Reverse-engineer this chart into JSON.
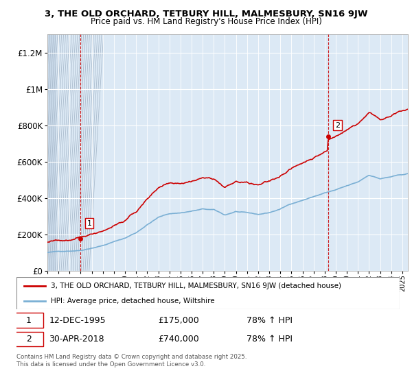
{
  "title": "3, THE OLD ORCHARD, TETBURY HILL, MALMESBURY, SN16 9JW",
  "subtitle": "Price paid vs. HM Land Registry's House Price Index (HPI)",
  "legend_line1": "3, THE OLD ORCHARD, TETBURY HILL, MALMESBURY, SN16 9JW (detached house)",
  "legend_line2": "HPI: Average price, detached house, Wiltshire",
  "annotation1_label": "1",
  "annotation1_date": "12-DEC-1995",
  "annotation1_price": "£175,000",
  "annotation1_hpi": "78% ↑ HPI",
  "annotation2_label": "2",
  "annotation2_date": "30-APR-2018",
  "annotation2_price": "£740,000",
  "annotation2_hpi": "78% ↑ HPI",
  "footer": "Contains HM Land Registry data © Crown copyright and database right 2025.\nThis data is licensed under the Open Government Licence v3.0.",
  "house_color": "#cc0000",
  "hpi_color": "#7aafd4",
  "chart_bg": "#dce9f5",
  "hatch_bg": "#e8e8e8",
  "ylim": [
    0,
    1300000
  ],
  "yticks": [
    0,
    200000,
    400000,
    600000,
    800000,
    1000000,
    1200000
  ],
  "ytick_labels": [
    "£0",
    "£200K",
    "£400K",
    "£600K",
    "£800K",
    "£1M",
    "£1.2M"
  ],
  "point1_x": 1995.958,
  "point1_y": 175000,
  "point2_x": 2018.33,
  "point2_y": 740000,
  "xmin": 1993.0,
  "xmax": 2025.5
}
